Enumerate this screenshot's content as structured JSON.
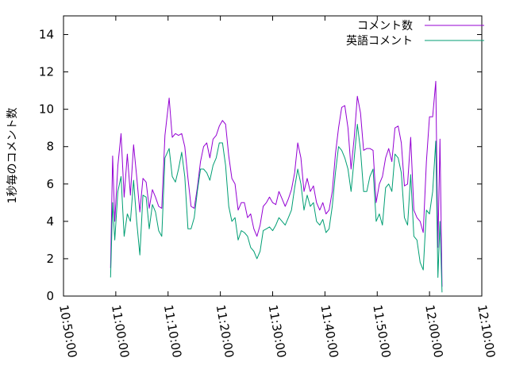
{
  "chart_data": {
    "type": "line",
    "ylabel": "1秒毎のコメント数",
    "ylim": [
      0,
      15
    ],
    "yticks": [
      0,
      2,
      4,
      6,
      8,
      10,
      12,
      14
    ],
    "xlim_minutes": [
      50,
      130
    ],
    "xtick_labels": [
      "10:50:00",
      "11:00:00",
      "11:10:00",
      "11:20:00",
      "11:30:00",
      "11:40:00",
      "11:50:00",
      "12:00:00",
      "12:10:00"
    ],
    "grid": false,
    "legend_position": "top-right",
    "series": [
      {
        "name": "コメント数",
        "color": "#9400d3",
        "points": [
          [
            59.0,
            1.5
          ],
          [
            59.4,
            7.5
          ],
          [
            59.8,
            4.0
          ],
          [
            60.4,
            7.0
          ],
          [
            61.0,
            8.7
          ],
          [
            61.6,
            5.3
          ],
          [
            62.2,
            7.6
          ],
          [
            62.8,
            5.4
          ],
          [
            63.4,
            8.1
          ],
          [
            64.0,
            6.4
          ],
          [
            64.6,
            4.5
          ],
          [
            65.2,
            6.3
          ],
          [
            65.8,
            6.1
          ],
          [
            66.4,
            4.7
          ],
          [
            67.0,
            5.7
          ],
          [
            67.6,
            5.3
          ],
          [
            68.2,
            4.8
          ],
          [
            68.8,
            4.7
          ],
          [
            69.4,
            8.6
          ],
          [
            70.2,
            10.6
          ],
          [
            70.8,
            8.5
          ],
          [
            71.4,
            8.7
          ],
          [
            72.0,
            8.6
          ],
          [
            72.6,
            8.7
          ],
          [
            73.2,
            8.0
          ],
          [
            73.8,
            6.3
          ],
          [
            74.4,
            4.8
          ],
          [
            75.0,
            4.7
          ],
          [
            75.6,
            5.8
          ],
          [
            76.2,
            7.2
          ],
          [
            76.8,
            8.0
          ],
          [
            77.4,
            8.2
          ],
          [
            78.0,
            7.4
          ],
          [
            78.6,
            8.4
          ],
          [
            79.2,
            8.6
          ],
          [
            79.8,
            9.1
          ],
          [
            80.4,
            9.4
          ],
          [
            81.0,
            9.2
          ],
          [
            81.6,
            7.5
          ],
          [
            82.2,
            6.3
          ],
          [
            82.8,
            6.0
          ],
          [
            83.4,
            4.6
          ],
          [
            84.0,
            5.0
          ],
          [
            84.6,
            5.0
          ],
          [
            85.2,
            4.2
          ],
          [
            85.8,
            4.4
          ],
          [
            86.4,
            3.6
          ],
          [
            87.0,
            3.2
          ],
          [
            87.6,
            3.8
          ],
          [
            88.2,
            4.8
          ],
          [
            88.8,
            5.0
          ],
          [
            89.4,
            5.3
          ],
          [
            90.0,
            5.0
          ],
          [
            90.6,
            4.9
          ],
          [
            91.2,
            5.6
          ],
          [
            91.8,
            5.2
          ],
          [
            92.4,
            4.8
          ],
          [
            93.0,
            5.2
          ],
          [
            93.6,
            5.7
          ],
          [
            94.2,
            6.6
          ],
          [
            94.8,
            8.2
          ],
          [
            95.4,
            7.4
          ],
          [
            96.0,
            5.6
          ],
          [
            96.6,
            6.3
          ],
          [
            97.2,
            5.6
          ],
          [
            97.8,
            5.9
          ],
          [
            98.4,
            5.0
          ],
          [
            99.0,
            4.6
          ],
          [
            99.6,
            5.0
          ],
          [
            100.2,
            4.4
          ],
          [
            100.8,
            4.6
          ],
          [
            101.4,
            5.6
          ],
          [
            102.0,
            7.6
          ],
          [
            102.6,
            9.0
          ],
          [
            103.2,
            10.1
          ],
          [
            103.8,
            10.2
          ],
          [
            104.4,
            9.0
          ],
          [
            105.0,
            6.8
          ],
          [
            105.6,
            8.5
          ],
          [
            106.2,
            10.7
          ],
          [
            106.8,
            9.8
          ],
          [
            107.4,
            7.8
          ],
          [
            108.0,
            7.9
          ],
          [
            108.6,
            7.9
          ],
          [
            109.2,
            7.8
          ],
          [
            109.8,
            5.0
          ],
          [
            110.4,
            6.0
          ],
          [
            111.0,
            6.4
          ],
          [
            111.6,
            7.4
          ],
          [
            112.2,
            7.9
          ],
          [
            112.8,
            7.2
          ],
          [
            113.4,
            9.0
          ],
          [
            114.0,
            9.1
          ],
          [
            114.6,
            8.2
          ],
          [
            115.2,
            5.9
          ],
          [
            115.8,
            6.0
          ],
          [
            116.4,
            8.5
          ],
          [
            117.0,
            4.6
          ],
          [
            117.6,
            4.2
          ],
          [
            118.2,
            4.0
          ],
          [
            118.8,
            3.4
          ],
          [
            119.4,
            7.2
          ],
          [
            120.0,
            9.6
          ],
          [
            120.6,
            9.6
          ],
          [
            121.2,
            11.5
          ],
          [
            121.6,
            2.6
          ],
          [
            122.0,
            8.4
          ],
          [
            122.4,
            0.5
          ]
        ]
      },
      {
        "name": "英語コメント",
        "color": "#009e73",
        "points": [
          [
            59.0,
            1.0
          ],
          [
            59.4,
            5.0
          ],
          [
            59.8,
            3.0
          ],
          [
            60.4,
            5.6
          ],
          [
            61.0,
            6.4
          ],
          [
            61.6,
            3.2
          ],
          [
            62.2,
            4.4
          ],
          [
            62.8,
            4.0
          ],
          [
            63.4,
            6.2
          ],
          [
            64.0,
            4.0
          ],
          [
            64.6,
            2.2
          ],
          [
            65.2,
            5.4
          ],
          [
            65.8,
            5.3
          ],
          [
            66.4,
            3.6
          ],
          [
            67.0,
            4.9
          ],
          [
            67.6,
            4.5
          ],
          [
            68.2,
            3.5
          ],
          [
            68.8,
            3.2
          ],
          [
            69.4,
            7.4
          ],
          [
            70.2,
            7.9
          ],
          [
            70.8,
            6.4
          ],
          [
            71.4,
            6.1
          ],
          [
            72.0,
            6.8
          ],
          [
            72.6,
            7.7
          ],
          [
            73.2,
            6.4
          ],
          [
            73.8,
            3.6
          ],
          [
            74.4,
            3.6
          ],
          [
            75.0,
            4.2
          ],
          [
            75.6,
            5.6
          ],
          [
            76.2,
            6.8
          ],
          [
            76.8,
            6.8
          ],
          [
            77.4,
            6.6
          ],
          [
            78.0,
            6.2
          ],
          [
            78.6,
            7.0
          ],
          [
            79.2,
            7.4
          ],
          [
            79.8,
            8.2
          ],
          [
            80.4,
            8.2
          ],
          [
            81.0,
            7.0
          ],
          [
            81.6,
            4.8
          ],
          [
            82.2,
            4.0
          ],
          [
            82.8,
            4.2
          ],
          [
            83.4,
            3.0
          ],
          [
            84.0,
            3.5
          ],
          [
            84.6,
            3.4
          ],
          [
            85.2,
            3.2
          ],
          [
            85.8,
            2.6
          ],
          [
            86.4,
            2.4
          ],
          [
            87.0,
            2.0
          ],
          [
            87.6,
            2.4
          ],
          [
            88.2,
            3.5
          ],
          [
            88.8,
            3.6
          ],
          [
            89.4,
            3.7
          ],
          [
            90.0,
            3.5
          ],
          [
            90.6,
            3.8
          ],
          [
            91.2,
            4.2
          ],
          [
            91.8,
            4.0
          ],
          [
            92.4,
            3.8
          ],
          [
            93.0,
            4.2
          ],
          [
            93.6,
            4.6
          ],
          [
            94.2,
            5.8
          ],
          [
            94.8,
            6.8
          ],
          [
            95.4,
            6.0
          ],
          [
            96.0,
            4.6
          ],
          [
            96.6,
            5.4
          ],
          [
            97.2,
            4.8
          ],
          [
            97.8,
            5.0
          ],
          [
            98.4,
            4.0
          ],
          [
            99.0,
            3.8
          ],
          [
            99.6,
            4.1
          ],
          [
            100.2,
            3.4
          ],
          [
            100.8,
            3.6
          ],
          [
            101.4,
            4.8
          ],
          [
            102.0,
            6.6
          ],
          [
            102.6,
            8.0
          ],
          [
            103.2,
            7.8
          ],
          [
            103.8,
            7.4
          ],
          [
            104.4,
            6.8
          ],
          [
            105.0,
            5.6
          ],
          [
            105.6,
            7.4
          ],
          [
            106.2,
            9.2
          ],
          [
            106.8,
            7.8
          ],
          [
            107.4,
            5.6
          ],
          [
            108.0,
            5.6
          ],
          [
            108.6,
            6.4
          ],
          [
            109.2,
            6.8
          ],
          [
            109.8,
            4.0
          ],
          [
            110.4,
            4.4
          ],
          [
            111.0,
            3.8
          ],
          [
            111.6,
            5.8
          ],
          [
            112.2,
            6.0
          ],
          [
            112.8,
            5.6
          ],
          [
            113.4,
            7.6
          ],
          [
            114.0,
            7.4
          ],
          [
            114.6,
            6.6
          ],
          [
            115.2,
            4.2
          ],
          [
            115.8,
            3.8
          ],
          [
            116.4,
            6.5
          ],
          [
            117.0,
            3.2
          ],
          [
            117.6,
            3.0
          ],
          [
            118.2,
            1.8
          ],
          [
            118.8,
            1.4
          ],
          [
            119.4,
            4.6
          ],
          [
            120.0,
            4.4
          ],
          [
            120.6,
            5.6
          ],
          [
            121.2,
            8.3
          ],
          [
            121.6,
            1.0
          ],
          [
            122.0,
            4.0
          ],
          [
            122.4,
            0.2
          ]
        ]
      }
    ]
  }
}
